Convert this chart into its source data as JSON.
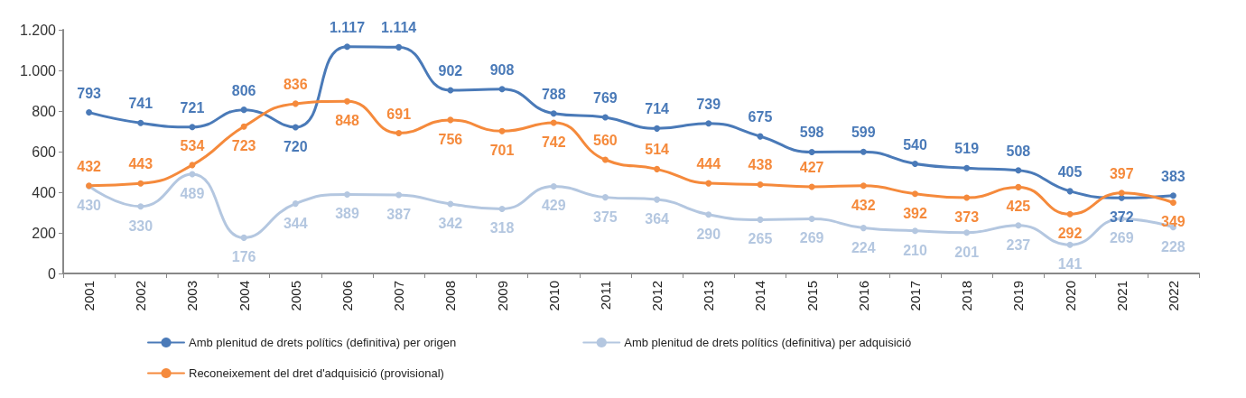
{
  "chart_data": {
    "type": "line",
    "categories": [
      "2001",
      "2002",
      "2003",
      "2004",
      "2005",
      "2006",
      "2007",
      "2008",
      "2009",
      "2010",
      "2011",
      "2012",
      "2013",
      "2014",
      "2015",
      "2016",
      "2017",
      "2018",
      "2019",
      "2020",
      "2021",
      "2022"
    ],
    "series": [
      {
        "name": "Amb plenitud de drets polítics (definitiva) per origen",
        "color": "#4a7ab8",
        "values": [
          793,
          741,
          721,
          806,
          720,
          1117,
          1114,
          902,
          908,
          788,
          769,
          714,
          739,
          675,
          598,
          599,
          540,
          519,
          508,
          405,
          372,
          383
        ],
        "value_labels": [
          "793",
          "741",
          "721",
          "806",
          "720",
          "1.117",
          "1.114",
          "902",
          "908",
          "788",
          "769",
          "714",
          "739",
          "675",
          "598",
          "599",
          "540",
          "519",
          "508",
          "405",
          "372",
          "383"
        ]
      },
      {
        "name": "Amb plenitud de drets polítics (definitiva) per adquisició",
        "color": "#b4c7e0",
        "values": [
          430,
          330,
          489,
          176,
          344,
          389,
          387,
          342,
          318,
          429,
          375,
          364,
          290,
          265,
          269,
          224,
          210,
          201,
          237,
          141,
          269,
          228
        ],
        "value_labels": [
          "430",
          "330",
          "489",
          "176",
          "344",
          "389",
          "387",
          "342",
          "318",
          "429",
          "375",
          "364",
          "290",
          "265",
          "269",
          "224",
          "210",
          "201",
          "237",
          "141",
          "269",
          "228"
        ]
      },
      {
        "name": "Reconeixement del dret d'adquisició (provisional)",
        "color": "#f58a3c",
        "values": [
          432,
          443,
          534,
          723,
          836,
          848,
          691,
          756,
          701,
          742,
          560,
          514,
          444,
          438,
          427,
          432,
          392,
          373,
          425,
          292,
          397,
          349
        ],
        "value_labels": [
          "432",
          "443",
          "534",
          "723",
          "836",
          "848",
          "691",
          "756",
          "701",
          "742",
          "560",
          "514",
          "444",
          "438",
          "427",
          "432",
          "392",
          "373",
          "425",
          "292",
          "397",
          "349"
        ]
      }
    ],
    "ylim": [
      0,
      1200
    ],
    "yticks": [
      0,
      200,
      400,
      600,
      800,
      {
        "value": 1000,
        "label": "1.000"
      },
      {
        "value": 1200,
        "label": "1.200"
      }
    ],
    "grid": false,
    "legend": "bottom",
    "marker": "circle",
    "line_style": "solid"
  }
}
